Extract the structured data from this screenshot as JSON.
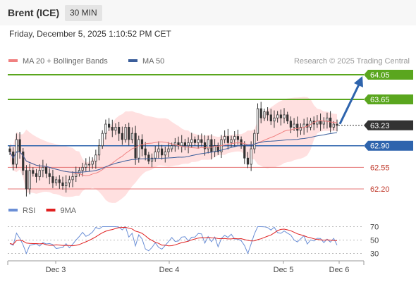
{
  "header": {
    "instrument": "Brent (ICE)",
    "timeframe": "30 MIN"
  },
  "datetime": "Friday, December 5, 2025 1:10:52 PM CET",
  "watermark": "Research © 2025 Trading Central",
  "colors": {
    "resistance": "#5aa61e",
    "pivot": "#2e64ad",
    "support": "#e57373",
    "current": "#333333",
    "ma20": "#f08080",
    "ma50": "#3b5e9b",
    "band": "#ffd6d6",
    "rsi": "#6b8fd6",
    "rsi_ma": "#e02020",
    "candle": "#333333"
  },
  "chart_data": [
    {
      "type": "candlestick",
      "title": "",
      "legend": [
        {
          "name": "MA 20 + Bollinger Bands",
          "color": "#f08080"
        },
        {
          "name": "MA 50",
          "color": "#3b5e9b"
        }
      ],
      "levels": [
        {
          "label": "64.05",
          "value": 64.05,
          "kind": "resistance"
        },
        {
          "label": "63.65",
          "value": 63.65,
          "kind": "resistance"
        },
        {
          "label": "63.23",
          "value": 63.23,
          "kind": "current"
        },
        {
          "label": "62.90",
          "value": 62.9,
          "kind": "pivot"
        },
        {
          "label": "62.55",
          "value": 62.55,
          "kind": "support"
        },
        {
          "label": "62.20",
          "value": 62.2,
          "kind": "support"
        }
      ],
      "ylim": [
        62.2,
        64.05
      ],
      "x_ticks": [
        "Dec 3",
        "Dec 4",
        "Dec 5",
        "Dec 6"
      ],
      "forecast": {
        "from": 63.23,
        "to": 64.05,
        "direction": "up"
      },
      "closes": [
        62.8,
        62.6,
        63.0,
        62.8,
        62.5,
        62.2,
        62.5,
        62.45,
        62.4,
        62.5,
        62.55,
        62.45,
        62.4,
        62.3,
        62.35,
        62.3,
        62.25,
        62.3,
        62.35,
        62.4,
        62.45,
        62.5,
        62.55,
        62.6,
        62.6,
        62.65,
        62.75,
        62.9,
        63.1,
        63.25,
        63.2,
        63.15,
        63.2,
        63.1,
        63.0,
        63.2,
        63.0,
        63.1,
        62.7,
        63.0,
        62.85,
        62.75,
        62.65,
        62.7,
        62.8,
        62.85,
        62.75,
        62.8,
        62.85,
        62.9,
        62.95,
        62.9,
        62.95,
        62.9,
        62.95,
        63.0,
        62.95,
        63.0,
        62.95,
        62.85,
        63.0,
        62.8,
        62.9,
        62.8,
        63.0,
        63.05,
        62.95,
        63.0,
        63.05,
        63.0,
        62.9,
        62.7,
        62.6,
        62.85,
        63.1,
        63.5,
        63.35,
        63.45,
        63.4,
        63.3,
        63.35,
        63.4,
        63.35,
        63.4,
        63.3,
        63.2,
        63.25,
        63.15,
        63.2,
        63.25,
        63.2,
        63.3,
        63.25,
        63.3,
        63.25,
        63.3,
        63.35,
        63.2,
        63.25,
        63.23
      ]
    },
    {
      "type": "line",
      "title": "",
      "series": [
        {
          "name": "RSI",
          "color": "#6b8fd6"
        },
        {
          "name": "9MA",
          "color": "#e02020"
        }
      ],
      "y_ticks": [
        {
          "label": "70",
          "value": 70
        },
        {
          "label": "50",
          "value": 50
        },
        {
          "label": "30",
          "value": 30
        }
      ],
      "ylim": [
        20,
        80
      ]
    }
  ]
}
